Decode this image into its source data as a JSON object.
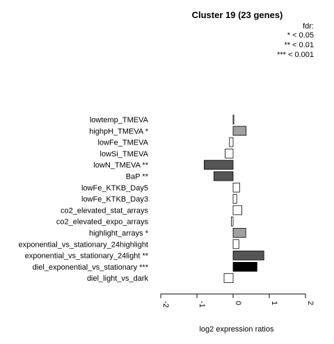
{
  "chart_data": {
    "type": "bar",
    "orientation": "horizontal",
    "title": "Cluster 19 (23 genes)",
    "legend": {
      "title": "fdr:",
      "entries": [
        "* < 0.05",
        "** < 0.01",
        "*** < 0.001"
      ],
      "placement": "top-right"
    },
    "xlabel": "log2 expression ratios",
    "xlim": [
      -2,
      2
    ],
    "xticks": [
      "-2",
      "-1",
      "0",
      "1",
      "2"
    ],
    "categories": [
      "lowtemp_TMEVA",
      "highpH_TMEVA *",
      "lowFe_TMEVA",
      "lowSi_TMEVA",
      "lowN_TMEVA **",
      "BaP **",
      "lowFe_KTKB_Day5",
      "lowFe_KTKB_Day3",
      "co2_elevated_stat_arrays",
      "co2_elevated_expo_arrays",
      "highlight_arrays *",
      "exponential_vs_stationary_24highlight",
      "exponential_vs_stationary_24light **",
      "diel_exponential_vs_stationary ***",
      "diel_light_vs_dark"
    ],
    "values": [
      0.02,
      0.36,
      -0.1,
      -0.22,
      -0.8,
      -0.53,
      0.18,
      0.1,
      0.24,
      -0.05,
      0.35,
      0.16,
      0.85,
      0.66,
      -0.25
    ],
    "bar_colors": [
      "#ffffff",
      "#a0a0a0",
      "#ffffff",
      "#ffffff",
      "#555555",
      "#555555",
      "#ffffff",
      "#ffffff",
      "#ffffff",
      "#ffffff",
      "#a0a0a0",
      "#ffffff",
      "#555555",
      "#000000",
      "#ffffff"
    ],
    "grid": false
  }
}
